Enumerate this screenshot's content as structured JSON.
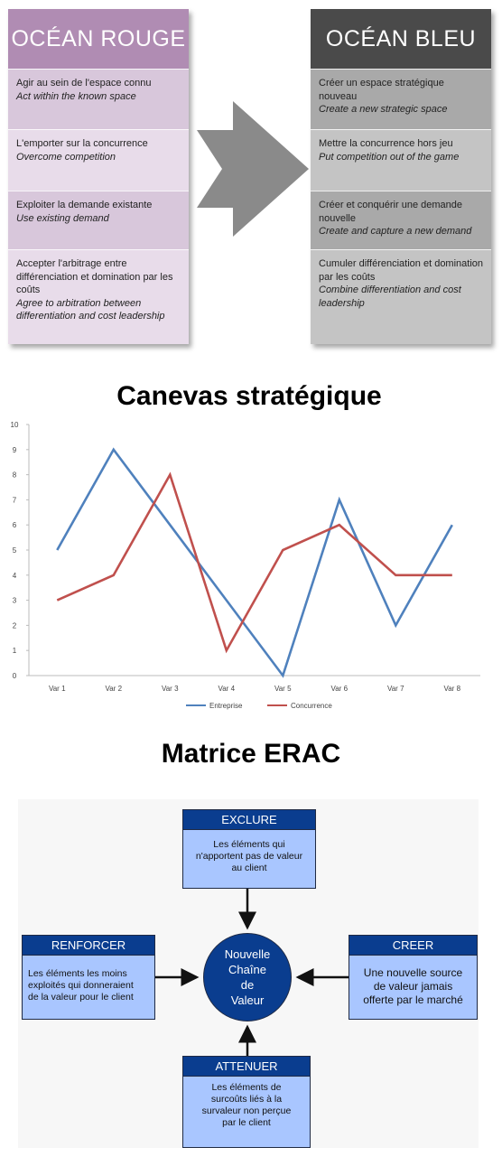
{
  "ocean": {
    "red": {
      "title": "OCÉAN ROUGE",
      "items": [
        {
          "fr": "Agir au sein de l'espace connu",
          "en": "Act within the known space"
        },
        {
          "fr": "L'emporter sur la concurrence",
          "en": "Overcome competition"
        },
        {
          "fr": "Exploiter la demande existante",
          "en": "Use existing demand"
        },
        {
          "fr": "Accepter l'arbitrage entre différenciation et domination par les coûts",
          "en": "Agree to arbitration between differentiation and cost leadership"
        }
      ]
    },
    "blue": {
      "title": "OCÉAN BLEU",
      "items": [
        {
          "fr": "Créer un espace stratégique nouveau",
          "en": "Create a new strategic space"
        },
        {
          "fr": "Mettre la concurrence hors jeu",
          "en": "Put competition out of the game"
        },
        {
          "fr": "Créer et conquérir une demande nouvelle",
          "en": "Create and capture a new demand"
        },
        {
          "fr": "Cumuler différenciation et domination par les coûts",
          "en": "Combine differentiation and cost leadership"
        }
      ]
    },
    "colors": {
      "red_header": "#b08cb3",
      "blue_header": "#4a4a4a",
      "arrow": "#8a8a8a"
    }
  },
  "chart_data": {
    "type": "line",
    "title": "Canevas stratégique",
    "categories": [
      "Var 1",
      "Var 2",
      "Var 3",
      "Var 4",
      "Var 5",
      "Var 6",
      "Var 7",
      "Var 8"
    ],
    "series": [
      {
        "name": "Entreprise",
        "color": "#4f81bd",
        "values": [
          5,
          9,
          6,
          3,
          0,
          7,
          2,
          6
        ]
      },
      {
        "name": "Concurrence",
        "color": "#c0504d",
        "values": [
          3,
          4,
          8,
          1,
          5,
          6,
          4,
          4
        ]
      }
    ],
    "ylim": [
      0,
      10
    ],
    "yticks": [
      "0",
      "1",
      "2",
      "3",
      "4",
      "5",
      "6",
      "7",
      "8",
      "9",
      "10"
    ],
    "legend_position": "bottom",
    "grid": false
  },
  "erac": {
    "title": "Matrice ERAC",
    "center": {
      "line1": "Nouvelle",
      "line2": "Chaîne",
      "line3": "de",
      "line4": "Valeur"
    },
    "exclure": {
      "title": "EXCLURE",
      "l1": "Les éléments qui",
      "l2": "n'apportent pas de valeur",
      "l3": "au client"
    },
    "renforcer": {
      "title": "RENFORCER",
      "l1": "Les éléments les moins",
      "l2": "exploités qui donneraient",
      "l3": "de la valeur pour le client"
    },
    "creer": {
      "title": "CREER",
      "l1": "Une nouvelle source",
      "l2": "de valeur jamais",
      "l3": "offerte par le marché"
    },
    "attenuer": {
      "title": "ATTENUER",
      "l1": "Les éléments de",
      "l2": "surcoûts liés à la",
      "l3": "survaleur non perçue",
      "l4": "par le client"
    },
    "colors": {
      "header": "#0a3d8f",
      "body": "#a9c6ff"
    }
  }
}
